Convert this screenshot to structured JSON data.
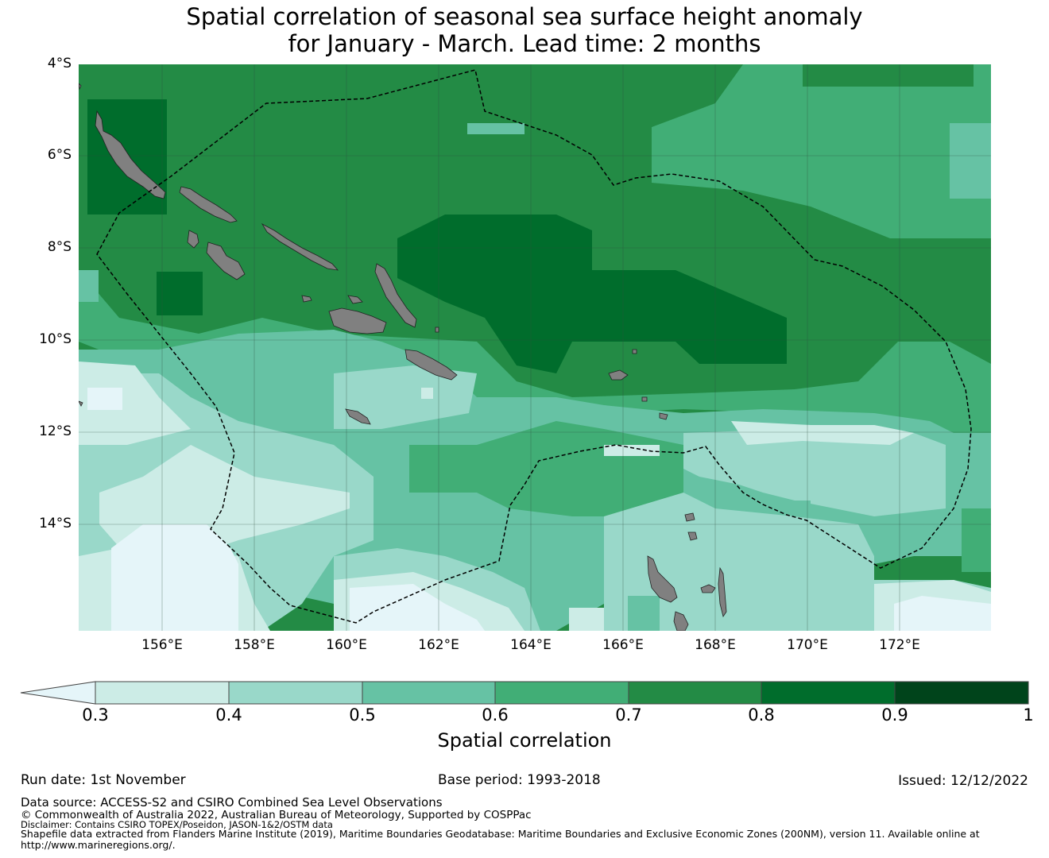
{
  "title_line1": "Spatial correlation of seasonal sea surface height anomaly",
  "title_line2": "for January - March. Lead time: 2 months",
  "map": {
    "lat_labels": [
      "4°S",
      "6°S",
      "8°S",
      "10°S",
      "12°S",
      "14°S"
    ],
    "lon_labels": [
      "156°E",
      "158°E",
      "160°E",
      "162°E",
      "164°E",
      "166°E",
      "168°E",
      "170°E",
      "172°E"
    ],
    "land_color": "#808080",
    "boundary_style": "dashed black"
  },
  "colorbar": {
    "label": "Spatial correlation",
    "ticks": [
      "0.3",
      "0.4",
      "0.5",
      "0.6",
      "0.7",
      "0.8",
      "0.9",
      "1"
    ],
    "under_color": "#e5f5f9",
    "colors": [
      "#ccece6",
      "#99d8c9",
      "#66c2a4",
      "#41ae76",
      "#238b45",
      "#006d2c",
      "#00441b"
    ]
  },
  "footer": {
    "run_date": "Run date: 1st November",
    "base_period": "Base period: 1993-2018",
    "issued": "Issued: 12/12/2022",
    "data_source": "Data source: ACCESS-S2 and CSIRO Combined Sea Level Observations",
    "copyright": "© Commonwealth of Australia 2022, Australian Bureau of Meteorology, Supported by COSPPac",
    "disclaimer": "Disclaimer: Contains CSIRO TOPEX/Poseidon, JASON-1&2/OSTM data",
    "shapefile_line1": "Shapefile data extracted from Flanders Marine Institute (2019), Maritime Boundaries Geodatabase: Maritime Boundaries and Exclusive Economic Zones (200NM), version 11. Available online at",
    "shapefile_line2": "http://www.marineregions.org/."
  }
}
